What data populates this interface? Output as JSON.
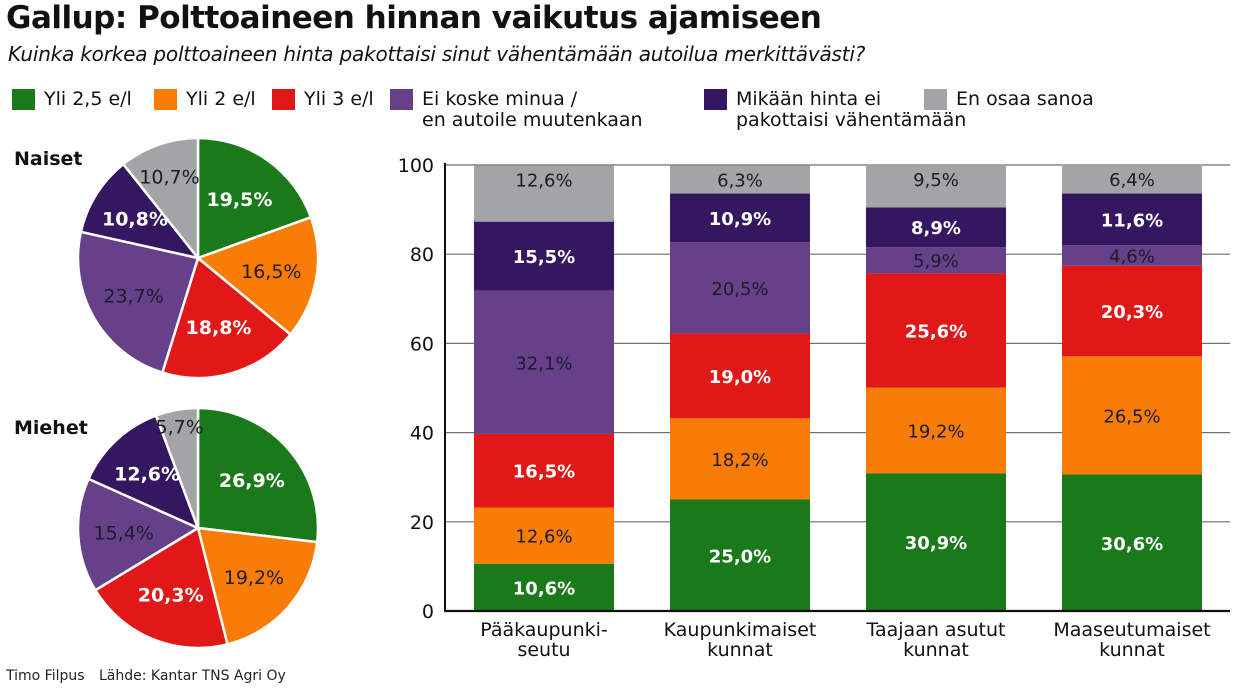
{
  "title": "Gallup: Polttoaineen hinnan vaikutus ajamiseen",
  "subtitle": "Kuinka korkea polttoaineen hinta pakottaisi sinut vähentämään autoilua merkittävästi?",
  "footer": {
    "author": "Timo Filpus",
    "source": "Lähde: Kantar TNS Agri Oy"
  },
  "legend": [
    {
      "line1": "Yli 2,5 e/l",
      "line2": "",
      "color": "#1a7a1a"
    },
    {
      "line1": "Yli 2 e/l",
      "line2": "",
      "color": "#f97c06"
    },
    {
      "line1": "Yli 3 e/l",
      "line2": "",
      "color": "#e01818"
    },
    {
      "line1": "Ei koske minua /",
      "line2": "en autoile muutenkaan",
      "color": "#66418a"
    },
    {
      "line1": "Mikään hinta ei",
      "line2": "pakottaisi vähentämään",
      "color": "#341760"
    },
    {
      "line1": "En osaa sanoa",
      "line2": "",
      "color": "#a2a4a6"
    }
  ],
  "chart_data": [
    {
      "type": "pie",
      "title": "Naiset",
      "categories": [
        "Yli 2,5 e/l",
        "Yli 2 e/l",
        "Yli 3 e/l",
        "Ei koske minua / en autoile muutenkaan",
        "Mikään hinta ei pakottaisi vähentämään",
        "En osaa sanoa"
      ],
      "values": [
        19.5,
        16.5,
        18.8,
        23.7,
        10.8,
        10.7
      ],
      "labels": [
        "19,5%",
        "16,5%",
        "18,8%",
        "23,7%",
        "10,8%",
        "10,7%"
      ],
      "colors": [
        "#1a7a1a",
        "#f97c06",
        "#e01818",
        "#66418a",
        "#341760",
        "#a2a4a6"
      ],
      "label_bold": [
        true,
        false,
        true,
        false,
        true,
        false
      ]
    },
    {
      "type": "pie",
      "title": "Miehet",
      "categories": [
        "Yli 2,5 e/l",
        "Yli 2 e/l",
        "Yli 3 e/l",
        "Ei koske minua / en autoile muutenkaan",
        "Mikään hinta ei pakottaisi vähentämään",
        "En osaa sanoa"
      ],
      "values": [
        26.9,
        19.2,
        20.3,
        15.4,
        12.6,
        5.7
      ],
      "labels": [
        "26,9%",
        "19,2%",
        "20,3%",
        "15,4%",
        "12,6%",
        "5,7%"
      ],
      "colors": [
        "#1a7a1a",
        "#f97c06",
        "#e01818",
        "#66418a",
        "#341760",
        "#a2a4a6"
      ],
      "label_bold": [
        true,
        false,
        true,
        false,
        true,
        false
      ]
    },
    {
      "type": "bar",
      "stacked": true,
      "categories": [
        [
          "Pääkaupunki-",
          "seutu"
        ],
        [
          "Kaupunkimaiset",
          "kunnat"
        ],
        [
          "Taajaan asutut",
          "kunnat"
        ],
        [
          "Maaseutumaiset",
          "kunnat"
        ]
      ],
      "ylim": [
        0,
        100
      ],
      "yticks": [
        0,
        20,
        40,
        60,
        80,
        100
      ],
      "grid": true,
      "xlabel": "",
      "ylabel": "",
      "series": [
        {
          "name": "Yli 2,5 e/l",
          "color": "#1a7a1a",
          "bold": true,
          "values": [
            10.6,
            25.0,
            30.9,
            30.6
          ],
          "labels": [
            "10,6%",
            "25,0%",
            "30,9%",
            "30,6%"
          ]
        },
        {
          "name": "Yli 2 e/l",
          "color": "#f97c06",
          "bold": false,
          "values": [
            12.6,
            18.2,
            19.2,
            26.5
          ],
          "labels": [
            "12,6%",
            "18,2%",
            "19,2%",
            "26,5%"
          ]
        },
        {
          "name": "Yli 3 e/l",
          "color": "#e01818",
          "bold": true,
          "values": [
            16.5,
            19.0,
            25.6,
            20.3
          ],
          "labels": [
            "16,5%",
            "19,0%",
            "25,6%",
            "20,3%"
          ]
        },
        {
          "name": "Ei koske minua / en autoile muutenkaan",
          "color": "#66418a",
          "bold": false,
          "values": [
            32.1,
            20.5,
            5.9,
            4.6
          ],
          "labels": [
            "32,1%",
            "20,5%",
            "5,9%",
            "4,6%"
          ]
        },
        {
          "name": "Mikään hinta ei pakottaisi vähentämään",
          "color": "#341760",
          "bold": true,
          "values": [
            15.5,
            10.9,
            8.9,
            11.6
          ],
          "labels": [
            "15,5%",
            "10,9%",
            "8,9%",
            "11,6%"
          ]
        },
        {
          "name": "En osaa sanoa",
          "color": "#a2a4a6",
          "bold": false,
          "values": [
            12.6,
            6.3,
            9.5,
            6.4
          ],
          "labels": [
            "12,6%",
            "6,3%",
            "9,5%",
            "6,4%"
          ]
        }
      ]
    }
  ]
}
